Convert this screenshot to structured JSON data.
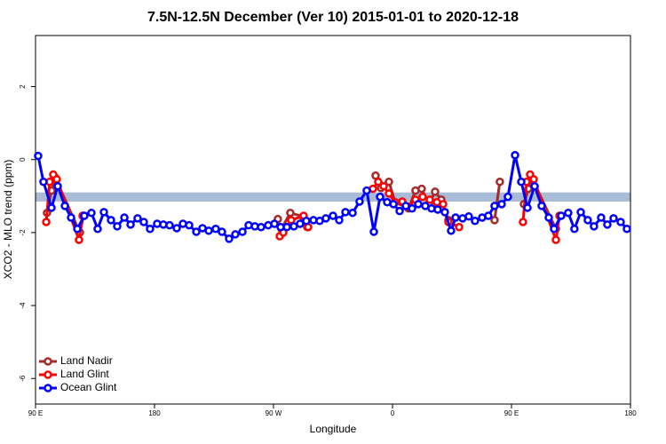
{
  "chart_data": {
    "type": "line",
    "title": "7.5N-12.5N December (Ver 10)   2015-01-01 to 2020-12-18",
    "xlabel": "Longitude",
    "ylabel": "XCO2 - MLO trend (ppm)",
    "xlim": [
      90,
      540
    ],
    "xticks": [
      {
        "value": 90,
        "label": "90 E"
      },
      180,
      {
        "value": 270,
        "label": "90 W"
      },
      {
        "value": 360,
        "label": "0"
      },
      {
        "value": 450,
        "label": "90 E"
      },
      180
    ],
    "ylim": [
      -6.7,
      3.4
    ],
    "yticks": [
      -6,
      -4,
      -2,
      0,
      2
    ],
    "reference_band": [
      -1.15,
      -0.9
    ],
    "band_color": "#a8bcd8",
    "legend": "bottom-left",
    "series": [
      {
        "name": "Land Nadir",
        "color": "#a52a2a",
        "x": [
          98.7,
          102.1,
          104.8,
          123.6,
          126.3,
          null,
          273.3,
          276.0,
          282.7,
          292.2,
          295.5,
          null,
          347.2,
          351.3,
          357.3,
          362.0,
          372.1,
          377.4,
          382.1,
          387.5,
          392.2,
          396.9,
          402.3,
          null,
          437.2,
          441.2,
          null,
          459.4,
          462.8,
          466.1,
          483.6,
          486.9
        ],
        "values": [
          -1.46,
          -0.85,
          -0.49,
          -2.0,
          -1.54,
          null,
          -1.63,
          -1.9,
          -1.46,
          -1.56,
          -1.85,
          null,
          -0.44,
          -0.78,
          -0.61,
          -1.17,
          -1.34,
          -0.85,
          -0.8,
          -1.22,
          -0.88,
          -1.1,
          -1.66,
          null,
          -1.66,
          -0.61,
          null,
          -1.22,
          -0.8,
          -0.56,
          -1.9,
          -1.54
        ]
      },
      {
        "name": "Land Glint",
        "color": "#ff0000",
        "x": [
          98.1,
          100.7,
          103.4,
          106.1,
          122.9,
          125.6,
          null,
          274.7,
          277.4,
          283.4,
          292.8,
          296.2,
          null,
          345.2,
          349.2,
          353.3,
          357.3,
          362.0,
          367.4,
          372.1,
          377.4,
          382.8,
          388.2,
          393.6,
          398.3,
          402.3,
          410.4,
          null,
          458.7,
          461.4,
          464.1,
          466.8,
          483.6,
          486.3
        ],
        "values": [
          -1.71,
          -0.61,
          -0.41,
          -0.54,
          -2.2,
          -1.54,
          null,
          -2.1,
          -2.0,
          -1.66,
          -1.54,
          -1.85,
          null,
          -0.8,
          -0.61,
          -0.73,
          -0.93,
          -1.17,
          -1.15,
          -1.29,
          -1.1,
          -1.02,
          -1.1,
          -1.17,
          -1.22,
          -1.71,
          -1.85,
          null,
          -1.71,
          -0.61,
          -0.41,
          -0.54,
          -2.2,
          -1.54
        ]
      },
      {
        "name": "Ocean Glint",
        "color": "#0000ff",
        "x": [
          92.0,
          96.0,
          102.1,
          106.8,
          112.2,
          116.9,
          121.6,
          126.9,
          132.3,
          137.0,
          141.7,
          147.1,
          151.8,
          157.2,
          161.9,
          167.2,
          171.9,
          176.6,
          182.0,
          186.7,
          191.4,
          196.8,
          201.5,
          206.2,
          211.6,
          216.3,
          221.0,
          226.3,
          231.0,
          236.4,
          241.1,
          246.5,
          251.2,
          255.9,
          260.6,
          266.0,
          270.7,
          275.4,
          280.1,
          285.4,
          290.1,
          294.8,
          300.2,
          304.9,
          309.6,
          315.0,
          319.7,
          324.4,
          329.8,
          335.1,
          340.5,
          345.9,
          350.6,
          356.0,
          360.7,
          365.4,
          370.1,
          374.8,
          379.5,
          384.8,
          389.5,
          394.2,
          399.6,
          404.3,
          407.7,
          413.0,
          417.7,
          422.4,
          427.8,
          432.5,
          437.2,
          442.6,
          447.3,
          452.7,
          457.4,
          462.1,
          467.5,
          472.8,
          478.2,
          482.2,
          487.6,
          492.9,
          497.6,
          502.4,
          507.7,
          512.4,
          517.8,
          522.5,
          527.2,
          532.6,
          537.3
        ],
        "values": [
          0.1,
          -0.61,
          -1.32,
          -0.73,
          -1.27,
          -1.59,
          -1.9,
          -1.54,
          -1.46,
          -1.9,
          -1.44,
          -1.66,
          -1.83,
          -1.59,
          -1.78,
          -1.61,
          -1.71,
          -1.9,
          -1.76,
          -1.78,
          -1.8,
          -1.88,
          -1.76,
          -1.8,
          -1.98,
          -1.88,
          -1.95,
          -1.9,
          -1.98,
          -2.17,
          -2.05,
          -1.98,
          -1.8,
          -1.83,
          -1.85,
          -1.8,
          -1.76,
          -1.85,
          -1.85,
          -1.83,
          -1.76,
          -1.68,
          -1.66,
          -1.68,
          -1.61,
          -1.54,
          -1.66,
          -1.44,
          -1.46,
          -1.15,
          -0.85,
          -1.98,
          -1.02,
          -1.17,
          -1.22,
          -1.41,
          -1.27,
          -1.34,
          -1.22,
          -1.27,
          -1.34,
          -1.37,
          -1.44,
          -1.95,
          -1.59,
          -1.61,
          -1.56,
          -1.68,
          -1.59,
          -1.54,
          -1.27,
          -1.22,
          -1.02,
          0.12,
          -0.61,
          -1.32,
          -0.73,
          -1.27,
          -1.59,
          -1.9,
          -1.54,
          -1.46,
          -1.9,
          -1.44,
          -1.66,
          -1.83,
          -1.59,
          -1.78,
          -1.61,
          -1.71,
          -1.9
        ]
      }
    ]
  }
}
